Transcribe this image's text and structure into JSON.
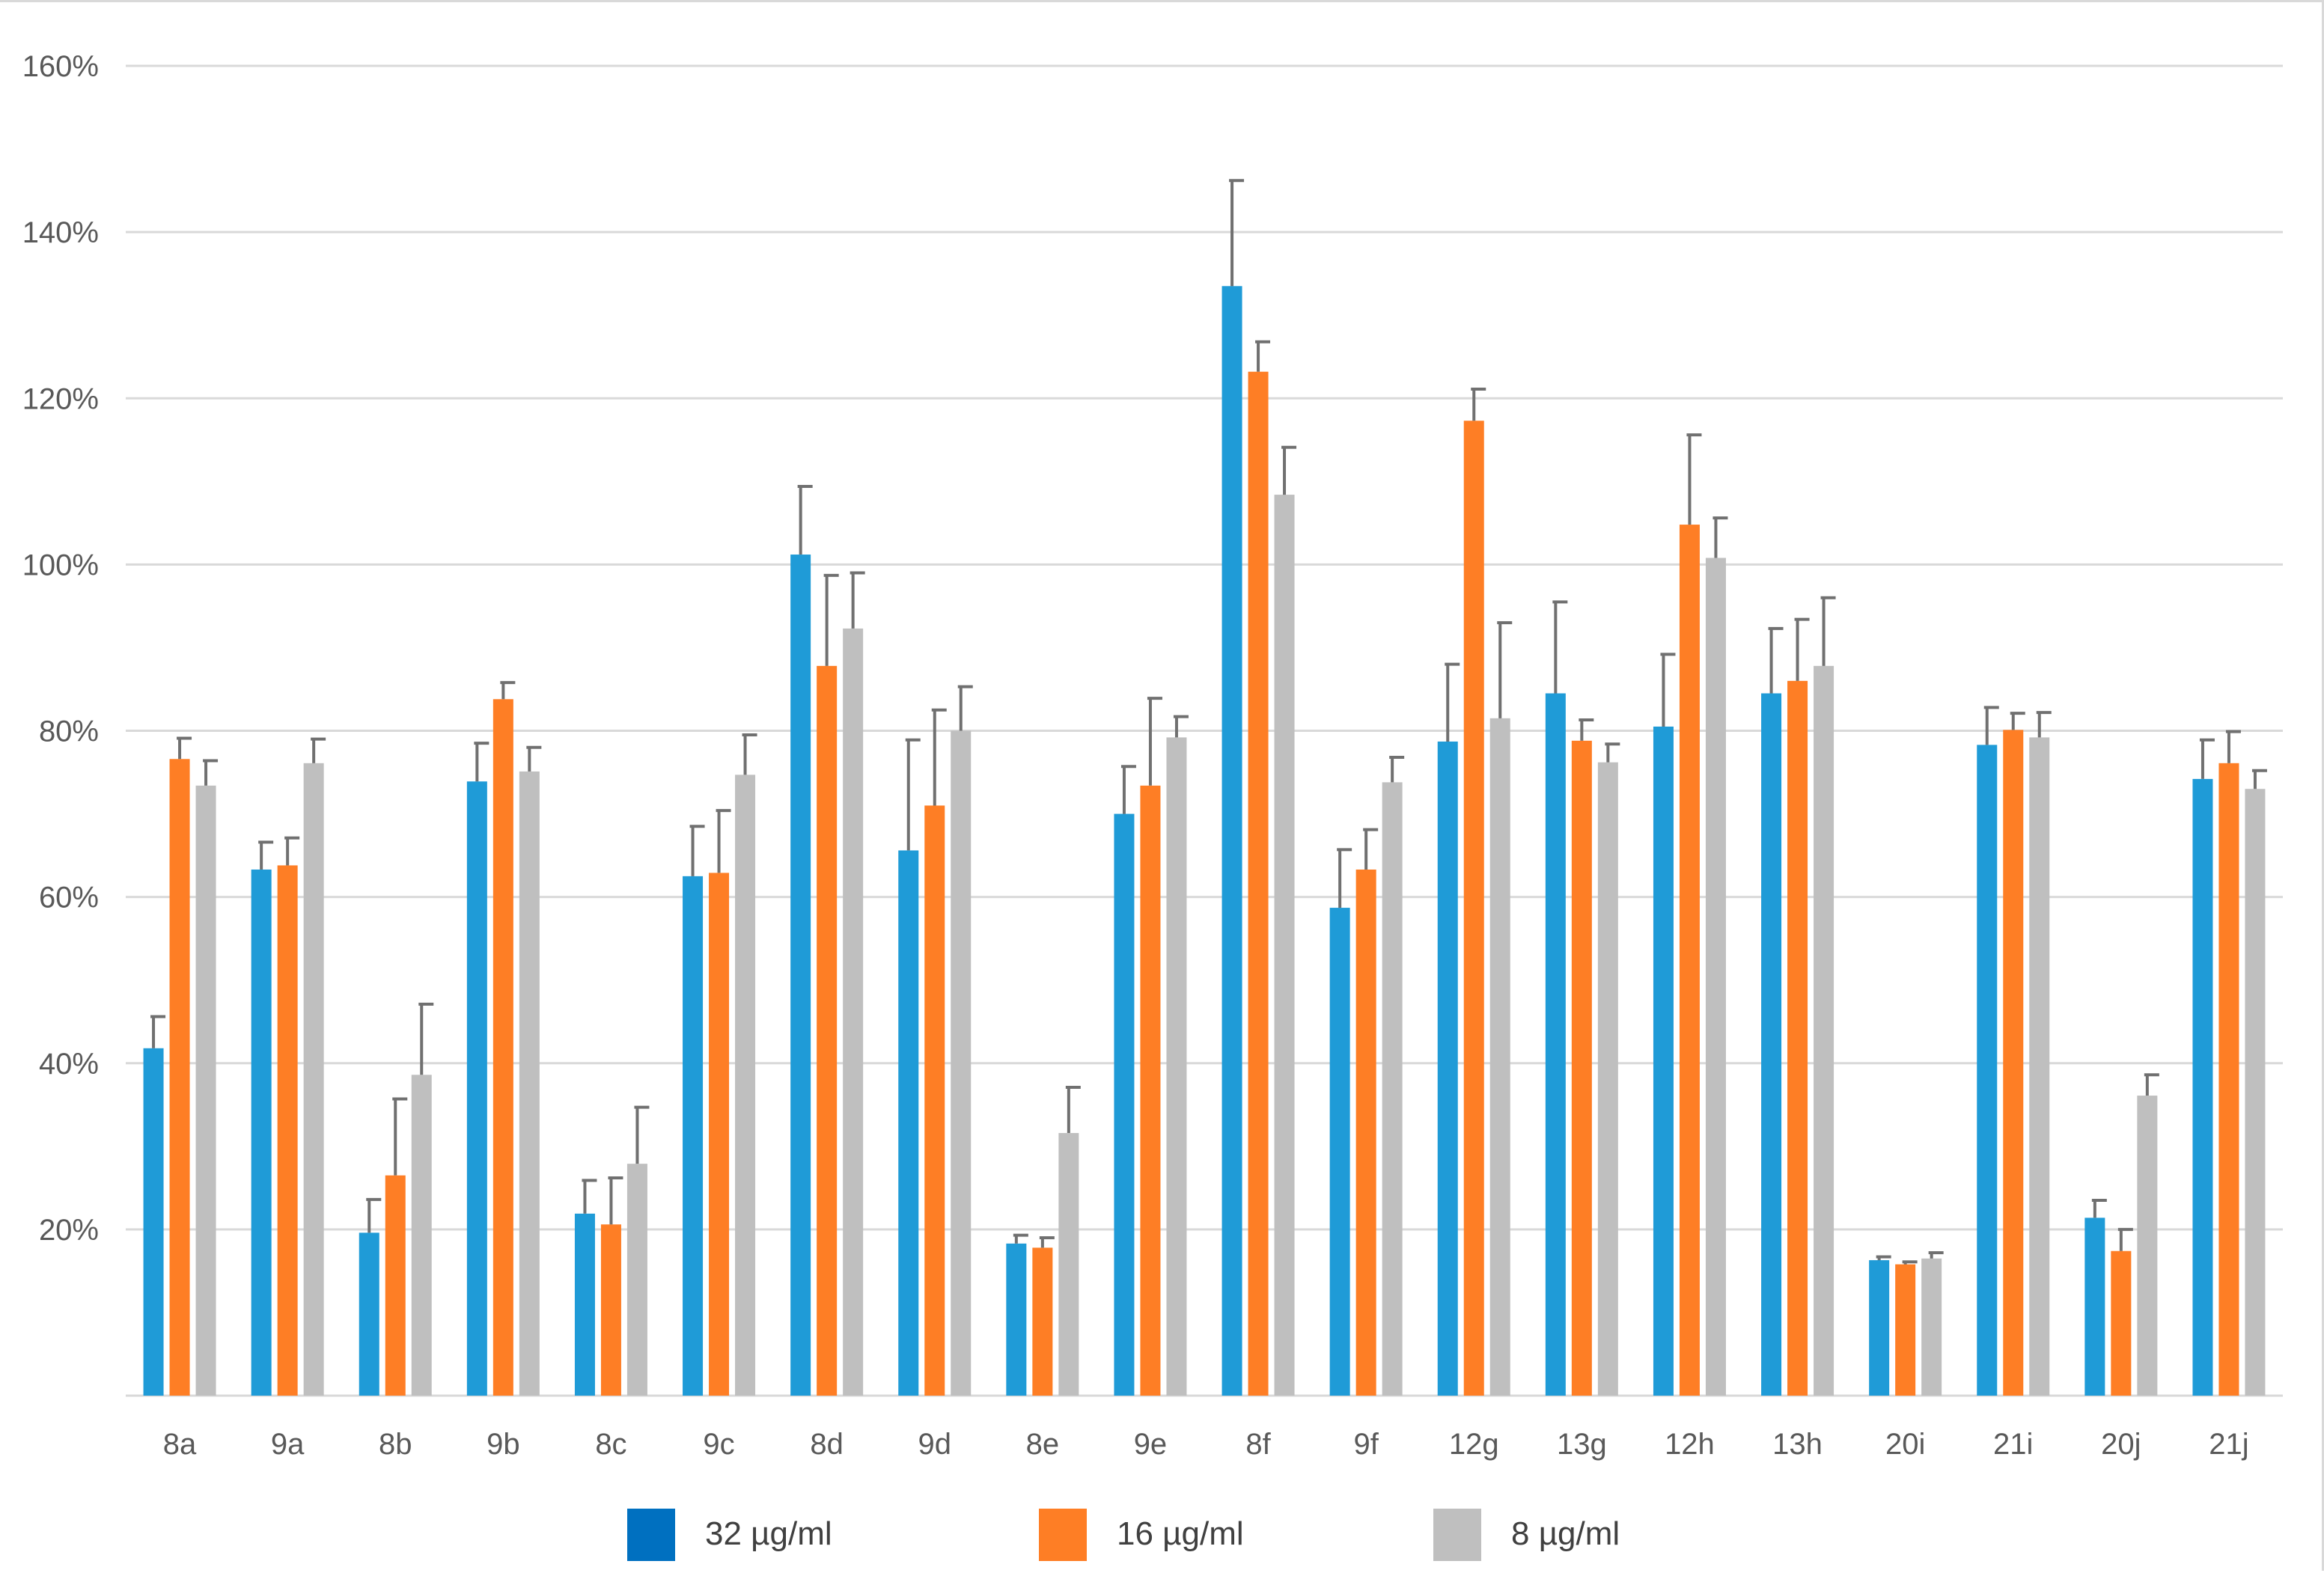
{
  "chart_data": {
    "type": "bar",
    "title": "",
    "xlabel": "",
    "ylabel": "",
    "ylim": [
      0,
      1.6
    ],
    "y_ticks": [
      {
        "value": 0.2,
        "label": "20%"
      },
      {
        "value": 0.4,
        "label": "40%"
      },
      {
        "value": 0.6,
        "label": "60%"
      },
      {
        "value": 0.8,
        "label": "80%"
      },
      {
        "value": 1.0,
        "label": "100%"
      },
      {
        "value": 1.2,
        "label": "120%"
      },
      {
        "value": 1.4,
        "label": "140%"
      },
      {
        "value": 1.6,
        "label": "160%"
      }
    ],
    "grid": true,
    "legend_position": "bottom",
    "categories": [
      "8a",
      "9a",
      "8b",
      "9b",
      "8c",
      "9c",
      "8d",
      "9d",
      "8e",
      "9e",
      "8f",
      "9f",
      "12g",
      "13g",
      "12h",
      "13h",
      "20i",
      "21i",
      "20j",
      "21j"
    ],
    "series": [
      {
        "name": "32 µg/ml",
        "color": "#1f9bd7",
        "legend_color": "#0070c0",
        "values": [
          0.418,
          0.633,
          0.196,
          0.739,
          0.219,
          0.625,
          1.012,
          0.656,
          0.183,
          0.7,
          1.335,
          0.587,
          0.787,
          0.845,
          0.805,
          0.845,
          0.163,
          0.783,
          0.214,
          0.742
        ],
        "errors": [
          0.038,
          0.033,
          0.04,
          0.046,
          0.04,
          0.06,
          0.082,
          0.133,
          0.01,
          0.057,
          0.127,
          0.07,
          0.093,
          0.11,
          0.087,
          0.078,
          0.004,
          0.045,
          0.021,
          0.047
        ]
      },
      {
        "name": "16 µg/ml",
        "color": "#fe7e25",
        "legend_color": "#fe7e25",
        "values": [
          0.766,
          0.638,
          0.265,
          0.838,
          0.206,
          0.629,
          0.878,
          0.71,
          0.178,
          0.734,
          1.232,
          0.633,
          1.173,
          0.788,
          1.048,
          0.86,
          0.158,
          0.801,
          0.174,
          0.761
        ],
        "errors": [
          0.025,
          0.033,
          0.092,
          0.02,
          0.056,
          0.075,
          0.109,
          0.115,
          0.012,
          0.105,
          0.036,
          0.048,
          0.038,
          0.025,
          0.108,
          0.074,
          0.003,
          0.02,
          0.026,
          0.038
        ]
      },
      {
        "name": "8 µg/ml",
        "color": "#bfbfbf",
        "legend_color": "#bfbfbf",
        "values": [
          0.734,
          0.761,
          0.386,
          0.751,
          0.279,
          0.747,
          0.923,
          0.8,
          0.316,
          0.792,
          1.084,
          0.738,
          0.815,
          0.762,
          1.008,
          0.878,
          0.165,
          0.792,
          0.361,
          0.73
        ],
        "errors": [
          0.03,
          0.029,
          0.085,
          0.029,
          0.068,
          0.048,
          0.067,
          0.053,
          0.055,
          0.025,
          0.057,
          0.03,
          0.115,
          0.022,
          0.048,
          0.082,
          0.007,
          0.03,
          0.025,
          0.022
        ]
      }
    ]
  }
}
